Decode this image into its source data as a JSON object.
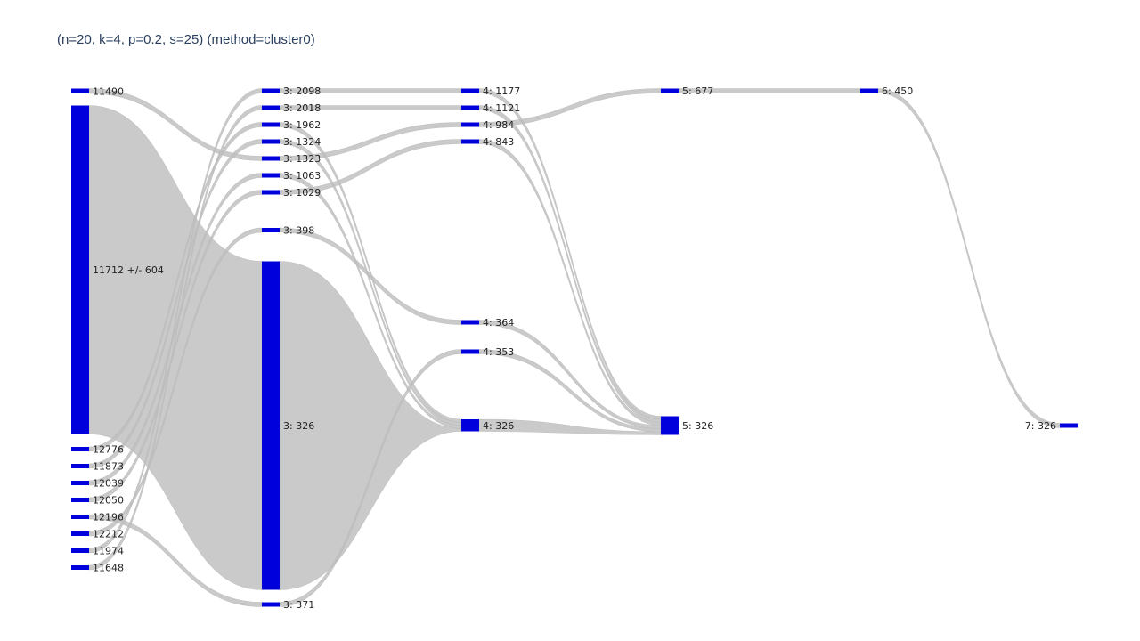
{
  "title": "(n=20, k=4, p=0.2, s=25) (method=cluster0)",
  "colors": {
    "node": "#0000dd",
    "link": "#bdbdbd"
  },
  "nodes": [
    {
      "id": "a0",
      "label": "11490",
      "col": 0,
      "value": 1
    },
    {
      "id": "a1",
      "label": "11712 +/- 604",
      "col": 0,
      "value": 20
    },
    {
      "id": "a2",
      "label": "12776",
      "col": 0,
      "value": 1
    },
    {
      "id": "a3",
      "label": "11873",
      "col": 0,
      "value": 1
    },
    {
      "id": "a4",
      "label": "12039",
      "col": 0,
      "value": 1
    },
    {
      "id": "a5",
      "label": "12050",
      "col": 0,
      "value": 1
    },
    {
      "id": "a6",
      "label": "12196",
      "col": 0,
      "value": 1
    },
    {
      "id": "a7",
      "label": "12212",
      "col": 0,
      "value": 1
    },
    {
      "id": "a8",
      "label": "11974",
      "col": 0,
      "value": 1
    },
    {
      "id": "a9",
      "label": "11648",
      "col": 0,
      "value": 1
    },
    {
      "id": "b0",
      "label": "3: 2098",
      "col": 1,
      "value": 1
    },
    {
      "id": "b1",
      "label": "3: 2018",
      "col": 1,
      "value": 1
    },
    {
      "id": "b2",
      "label": "3: 1962",
      "col": 1,
      "value": 1
    },
    {
      "id": "b3",
      "label": "3: 1324",
      "col": 1,
      "value": 1
    },
    {
      "id": "b4",
      "label": "3: 1323",
      "col": 1,
      "value": 1
    },
    {
      "id": "b5",
      "label": "3: 1063",
      "col": 1,
      "value": 1
    },
    {
      "id": "b6",
      "label": "3: 1029",
      "col": 1,
      "value": 1
    },
    {
      "id": "b7",
      "label": "3: 398",
      "col": 1,
      "value": 1
    },
    {
      "id": "b8",
      "label": "3: 326",
      "col": 1,
      "value": 20
    },
    {
      "id": "b9",
      "label": "3: 371",
      "col": 1,
      "value": 1
    },
    {
      "id": "c0",
      "label": "4: 1177",
      "col": 2,
      "value": 1
    },
    {
      "id": "c1",
      "label": "4: 1121",
      "col": 2,
      "value": 1
    },
    {
      "id": "c2",
      "label": "4: 984",
      "col": 2,
      "value": 1
    },
    {
      "id": "c3",
      "label": "4: 843",
      "col": 2,
      "value": 1
    },
    {
      "id": "c4",
      "label": "4: 364",
      "col": 2,
      "value": 1
    },
    {
      "id": "c5",
      "label": "4: 353",
      "col": 2,
      "value": 1
    },
    {
      "id": "c6",
      "label": "4: 326",
      "col": 2,
      "value": 4
    },
    {
      "id": "d0",
      "label": "5: 677",
      "col": 3,
      "value": 1
    },
    {
      "id": "d1",
      "label": "5: 326",
      "col": 3,
      "value": 6
    },
    {
      "id": "e0",
      "label": "6: 450",
      "col": 4,
      "value": 1
    },
    {
      "id": "f0",
      "label": "7: 326",
      "col": 5,
      "value": 1
    }
  ],
  "links": [
    {
      "source": "a0",
      "target": "b4",
      "value": 1
    },
    {
      "source": "a1",
      "target": "b8",
      "value": 20
    },
    {
      "source": "a2",
      "target": "b2",
      "value": 1
    },
    {
      "source": "a3",
      "target": "b3",
      "value": 1
    },
    {
      "source": "a4",
      "target": "b5",
      "value": 1
    },
    {
      "source": "a5",
      "target": "b6",
      "value": 1
    },
    {
      "source": "a6",
      "target": "b9",
      "value": 1
    },
    {
      "source": "a7",
      "target": "b7",
      "value": 1
    },
    {
      "source": "a8",
      "target": "b0",
      "value": 1
    },
    {
      "source": "a9",
      "target": "b1",
      "value": 1
    },
    {
      "source": "b0",
      "target": "c0",
      "value": 1
    },
    {
      "source": "b1",
      "target": "c1",
      "value": 1
    },
    {
      "source": "b2",
      "target": "c6",
      "value": 1
    },
    {
      "source": "b3",
      "target": "c6",
      "value": 1
    },
    {
      "source": "b4",
      "target": "c2",
      "value": 1
    },
    {
      "source": "b5",
      "target": "c6",
      "value": 1
    },
    {
      "source": "b6",
      "target": "c3",
      "value": 1
    },
    {
      "source": "b7",
      "target": "c4",
      "value": 1
    },
    {
      "source": "b8",
      "target": "c6",
      "value": 1
    },
    {
      "source": "b9",
      "target": "c5",
      "value": 1
    },
    {
      "source": "c0",
      "target": "d1",
      "value": 1
    },
    {
      "source": "c1",
      "target": "d1",
      "value": 1
    },
    {
      "source": "c2",
      "target": "d0",
      "value": 1
    },
    {
      "source": "c3",
      "target": "d1",
      "value": 1
    },
    {
      "source": "c4",
      "target": "d1",
      "value": 1
    },
    {
      "source": "c5",
      "target": "d1",
      "value": 1
    },
    {
      "source": "c6",
      "target": "d1",
      "value": 1
    },
    {
      "source": "d0",
      "target": "e0",
      "value": 1
    },
    {
      "source": "e0",
      "target": "f0",
      "value": 1
    }
  ]
}
